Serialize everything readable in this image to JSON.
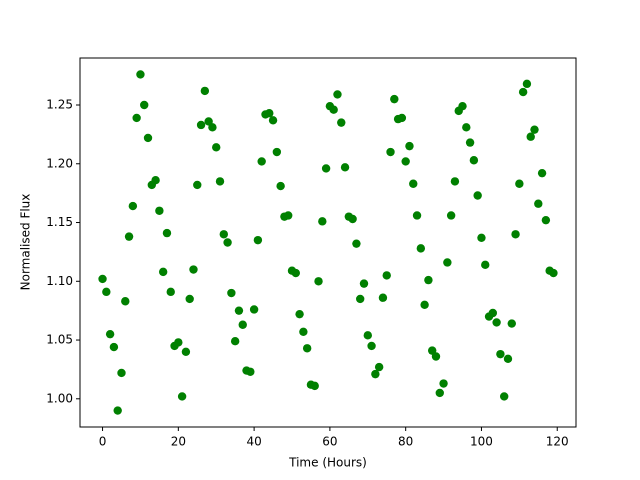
{
  "chart_data": {
    "type": "scatter",
    "xlabel": "Time (Hours)",
    "ylabel": "Normalised Flux",
    "color": "#008000",
    "x": [
      0,
      1,
      2,
      3,
      4,
      5,
      6,
      7,
      8,
      9,
      10,
      11,
      12,
      13,
      14,
      15,
      16,
      17,
      18,
      19,
      20,
      21,
      22,
      23,
      24,
      25,
      26,
      27,
      28,
      29,
      30,
      31,
      32,
      33,
      34,
      35,
      36,
      37,
      38,
      39,
      40,
      41,
      42,
      43,
      44,
      45,
      46,
      47,
      48,
      49,
      50,
      51,
      52,
      53,
      54,
      55,
      56,
      57,
      58,
      59,
      60,
      61,
      62,
      63,
      64,
      65,
      66,
      67,
      68,
      69,
      70,
      71,
      72,
      73,
      74,
      75,
      76,
      77,
      78,
      79,
      80,
      81,
      82,
      83,
      84,
      85,
      86,
      87,
      88,
      89,
      90,
      91,
      92,
      93,
      94,
      95,
      96,
      97,
      98,
      99,
      100,
      101,
      102,
      103,
      104,
      105,
      106,
      107,
      108,
      109,
      110,
      111,
      112,
      113,
      114,
      115,
      116,
      117,
      118,
      119
    ],
    "y": [
      1.102,
      1.091,
      1.055,
      1.044,
      0.99,
      1.022,
      1.083,
      1.138,
      1.164,
      1.239,
      1.276,
      1.25,
      1.222,
      1.182,
      1.186,
      1.16,
      1.108,
      1.141,
      1.091,
      1.045,
      1.048,
      1.002,
      1.04,
      1.085,
      1.11,
      1.182,
      1.233,
      1.262,
      1.236,
      1.231,
      1.214,
      1.185,
      1.14,
      1.133,
      1.09,
      1.049,
      1.075,
      1.063,
      1.024,
      1.023,
      1.076,
      1.135,
      1.202,
      1.242,
      1.243,
      1.237,
      1.21,
      1.181,
      1.155,
      1.156,
      1.109,
      1.107,
      1.072,
      1.057,
      1.043,
      1.012,
      1.011,
      1.1,
      1.151,
      1.196,
      1.249,
      1.246,
      1.259,
      1.235,
      1.197,
      1.155,
      1.153,
      1.132,
      1.085,
      1.098,
      1.054,
      1.045,
      1.021,
      1.027,
      1.086,
      1.105,
      1.21,
      1.255,
      1.238,
      1.239,
      1.202,
      1.215,
      1.183,
      1.156,
      1.128,
      1.08,
      1.101,
      1.041,
      1.036,
      1.005,
      1.013,
      1.116,
      1.156,
      1.185,
      1.245,
      1.249,
      1.231,
      1.218,
      1.203,
      1.173,
      1.137,
      1.114,
      1.07,
      1.073,
      1.065,
      1.038,
      1.002,
      1.034,
      1.064,
      1.14,
      1.183,
      1.261,
      1.268,
      1.223,
      1.229,
      1.166,
      1.192,
      1.152,
      1.109,
      1.107
    ],
    "xlim": [
      -5.95,
      124.95
    ],
    "ylim": [
      0.976,
      1.29
    ],
    "xticks": [
      0,
      20,
      40,
      60,
      80,
      100,
      120
    ],
    "yticks": [
      {
        "value": 1.0,
        "label": "1.00"
      },
      {
        "value": 1.05,
        "label": "1.05"
      },
      {
        "value": 1.1,
        "label": "1.10"
      },
      {
        "value": 1.15,
        "label": "1.15"
      },
      {
        "value": 1.2,
        "label": "1.20"
      },
      {
        "value": 1.25,
        "label": "1.25"
      }
    ]
  }
}
